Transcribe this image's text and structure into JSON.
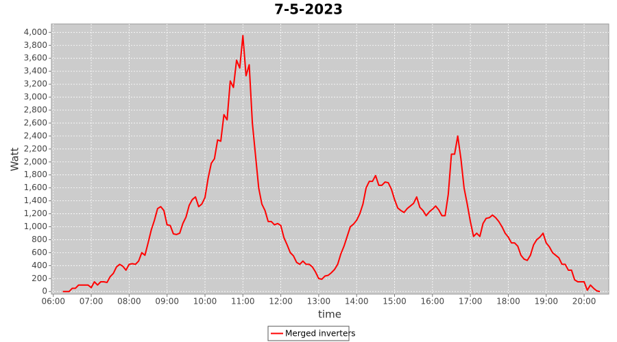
{
  "chart_data": {
    "type": "line",
    "title": "7-5-2023",
    "x_label": "time",
    "y_label": "Watt",
    "x": [
      "06:15",
      "06:20",
      "06:25",
      "06:30",
      "06:35",
      "06:40",
      "06:45",
      "06:50",
      "06:55",
      "07:00",
      "07:05",
      "07:10",
      "07:15",
      "07:20",
      "07:25",
      "07:30",
      "07:35",
      "07:40",
      "07:45",
      "07:50",
      "07:55",
      "08:00",
      "08:05",
      "08:10",
      "08:15",
      "08:20",
      "08:25",
      "08:30",
      "08:35",
      "08:40",
      "08:45",
      "08:50",
      "08:55",
      "09:00",
      "09:05",
      "09:10",
      "09:15",
      "09:20",
      "09:25",
      "09:30",
      "09:35",
      "09:40",
      "09:45",
      "09:50",
      "09:55",
      "10:00",
      "10:05",
      "10:10",
      "10:15",
      "10:20",
      "10:25",
      "10:30",
      "10:35",
      "10:40",
      "10:45",
      "10:50",
      "10:55",
      "11:00",
      "11:05",
      "11:10",
      "11:15",
      "11:20",
      "11:25",
      "11:30",
      "11:35",
      "11:40",
      "11:45",
      "11:50",
      "11:55",
      "12:00",
      "12:05",
      "12:10",
      "12:15",
      "12:20",
      "12:25",
      "12:30",
      "12:35",
      "12:40",
      "12:45",
      "12:50",
      "12:55",
      "13:00",
      "13:05",
      "13:10",
      "13:15",
      "13:20",
      "13:25",
      "13:30",
      "13:35",
      "13:40",
      "13:45",
      "13:50",
      "13:55",
      "14:00",
      "14:05",
      "14:10",
      "14:15",
      "14:20",
      "14:25",
      "14:30",
      "14:35",
      "14:40",
      "14:45",
      "14:50",
      "14:55",
      "15:00",
      "15:05",
      "15:10",
      "15:15",
      "15:20",
      "15:25",
      "15:30",
      "15:35",
      "15:40",
      "15:45",
      "15:50",
      "15:55",
      "16:00",
      "16:05",
      "16:10",
      "16:15",
      "16:20",
      "16:25",
      "16:30",
      "16:35",
      "16:40",
      "16:45",
      "16:50",
      "16:55",
      "17:00",
      "17:05",
      "17:10",
      "17:15",
      "17:20",
      "17:25",
      "17:30",
      "17:35",
      "17:40",
      "17:45",
      "17:50",
      "17:55",
      "18:00",
      "18:05",
      "18:10",
      "18:15",
      "18:20",
      "18:25",
      "18:30",
      "18:35",
      "18:40",
      "18:45",
      "18:50",
      "18:55",
      "19:00",
      "19:05",
      "19:10",
      "19:15",
      "19:20",
      "19:25",
      "19:30",
      "19:35",
      "19:40",
      "19:45",
      "19:50",
      "19:55",
      "20:00",
      "20:05",
      "20:10",
      "20:15",
      "20:20",
      "20:25"
    ],
    "series": [
      {
        "name": "Merged inverters",
        "color": "#ff0000",
        "values": [
          0,
          0,
          0,
          50,
          50,
          100,
          100,
          100,
          100,
          60,
          150,
          100,
          150,
          150,
          140,
          230,
          280,
          380,
          420,
          390,
          330,
          420,
          430,
          420,
          470,
          600,
          560,
          750,
          950,
          1100,
          1280,
          1310,
          1250,
          1030,
          1020,
          890,
          880,
          900,
          1050,
          1150,
          1330,
          1420,
          1460,
          1310,
          1350,
          1450,
          1750,
          1980,
          2050,
          2340,
          2320,
          2730,
          2650,
          3250,
          3150,
          3570,
          3450,
          3950,
          3330,
          3500,
          2600,
          2100,
          1600,
          1350,
          1250,
          1080,
          1080,
          1030,
          1050,
          1020,
          830,
          720,
          600,
          550,
          450,
          420,
          470,
          420,
          420,
          380,
          300,
          200,
          190,
          240,
          250,
          290,
          340,
          420,
          580,
          700,
          850,
          1000,
          1040,
          1100,
          1200,
          1350,
          1600,
          1700,
          1700,
          1790,
          1640,
          1640,
          1690,
          1680,
          1580,
          1420,
          1290,
          1250,
          1220,
          1280,
          1320,
          1360,
          1460,
          1300,
          1250,
          1170,
          1230,
          1270,
          1320,
          1260,
          1170,
          1170,
          1500,
          2120,
          2120,
          2400,
          2050,
          1600,
          1350,
          1080,
          850,
          900,
          850,
          1050,
          1130,
          1140,
          1180,
          1140,
          1080,
          1000,
          900,
          840,
          750,
          750,
          700,
          560,
          500,
          480,
          560,
          720,
          800,
          840,
          900,
          750,
          690,
          600,
          560,
          520,
          420,
          420,
          330,
          330,
          180,
          150,
          150,
          150,
          20,
          100,
          50,
          10,
          0
        ]
      }
    ],
    "xlim": [
      "05:57",
      "20:39"
    ],
    "xticks": [
      "06:00",
      "07:00",
      "08:00",
      "09:00",
      "10:00",
      "11:00",
      "12:00",
      "13:00",
      "14:00",
      "15:00",
      "16:00",
      "17:00",
      "18:00",
      "19:00",
      "20:00"
    ],
    "ylim": [
      -40,
      4130
    ],
    "yticks": [
      0,
      200,
      400,
      600,
      800,
      {
        "value": 1000,
        "label": "1,000"
      },
      {
        "value": 1200,
        "label": "1,200"
      },
      {
        "value": 1400,
        "label": "1,400"
      },
      {
        "value": 1600,
        "label": "1,600"
      },
      {
        "value": 1800,
        "label": "1,800"
      },
      {
        "value": 2000,
        "label": "2,000"
      },
      {
        "value": 2200,
        "label": "2,200"
      },
      {
        "value": 2400,
        "label": "2,400"
      },
      {
        "value": 2600,
        "label": "2,600"
      },
      {
        "value": 2800,
        "label": "2,800"
      },
      {
        "value": 3000,
        "label": "3,000"
      },
      {
        "value": 3200,
        "label": "3,200"
      },
      {
        "value": 3400,
        "label": "3,400"
      },
      {
        "value": 3600,
        "label": "3,600"
      },
      {
        "value": 3800,
        "label": "3,800"
      },
      {
        "value": 4000,
        "label": "4,000"
      }
    ],
    "grid": true,
    "legend": "bottom"
  }
}
